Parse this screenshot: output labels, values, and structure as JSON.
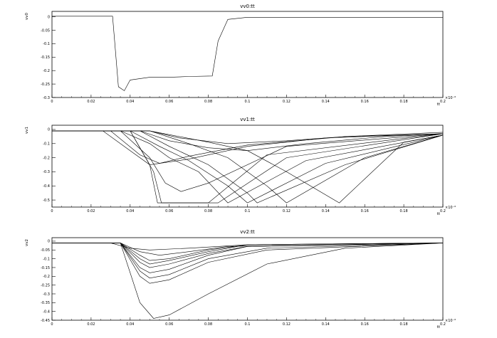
{
  "chart_data": [
    {
      "type": "line",
      "title": "vv0:tt",
      "ylabel": "vv0",
      "xlabel": "tt",
      "x_multiplier": "×10⁻⁶",
      "xlim": [
        0,
        0.2
      ],
      "ylim": [
        -0.3,
        0.02
      ],
      "x_ticks": [
        0,
        0.02,
        0.04,
        0.06,
        0.08,
        0.1,
        0.12,
        0.14,
        0.16,
        0.18,
        0.2
      ],
      "x_tick_labels": [
        "0",
        "0.02",
        "0.04",
        "0.06",
        "0.08",
        "0.1",
        "0.12",
        "0.14",
        "0.16",
        "0.18",
        "0.2"
      ],
      "y_ticks": [
        0,
        -0.05,
        -0.1,
        -0.15,
        -0.2,
        -0.25,
        -0.3
      ],
      "y_tick_labels": [
        "0",
        "-0.05",
        "-0.1",
        "-0.15",
        "-0.2",
        "-0.25",
        "-0.3"
      ],
      "grid": false,
      "series": [
        {
          "x": [
            0,
            0.031,
            0.034,
            0.037,
            0.04,
            0.05,
            0.06,
            0.07,
            0.082,
            0.085,
            0.09,
            0.1,
            0.2
          ],
          "y": [
            0.002,
            0.002,
            -0.26,
            -0.275,
            -0.235,
            -0.225,
            -0.225,
            -0.222,
            -0.22,
            -0.09,
            -0.01,
            -0.002,
            -0.002
          ]
        }
      ]
    },
    {
      "type": "line",
      "title": "vv1:tt",
      "ylabel": "vv1",
      "xlabel": "tt",
      "x_multiplier": "×10⁻⁶",
      "xlim": [
        0,
        0.2
      ],
      "ylim": [
        -0.55,
        0.03
      ],
      "x_ticks": [
        0,
        0.02,
        0.04,
        0.06,
        0.08,
        0.1,
        0.12,
        0.14,
        0.16,
        0.18,
        0.2
      ],
      "x_tick_labels": [
        "0",
        "0.02",
        "0.04",
        "0.06",
        "0.08",
        "0.1",
        "0.12",
        "0.14",
        "0.16",
        "0.18",
        "0.2"
      ],
      "y_ticks": [
        0,
        -0.1,
        -0.2,
        -0.3,
        -0.4,
        -0.5
      ],
      "y_tick_labels": [
        "0",
        "-0.1",
        "-0.2",
        "-0.3",
        "-0.4",
        "-0.5"
      ],
      "grid": false,
      "series": [
        {
          "x": [
            0,
            0.026,
            0.04,
            0.05,
            0.07,
            0.1,
            0.14,
            0.2
          ],
          "y": [
            -0.01,
            -0.01,
            -0.15,
            -0.25,
            -0.21,
            -0.12,
            -0.06,
            -0.03
          ]
        },
        {
          "x": [
            0,
            0.03,
            0.045,
            0.055,
            0.07,
            0.1,
            0.15,
            0.2
          ],
          "y": [
            -0.01,
            -0.01,
            -0.18,
            -0.24,
            -0.19,
            -0.11,
            -0.05,
            -0.03
          ]
        },
        {
          "x": [
            0,
            0.035,
            0.05,
            0.058,
            0.066,
            0.08,
            0.12,
            0.2
          ],
          "y": [
            -0.01,
            -0.01,
            -0.2,
            -0.38,
            -0.44,
            -0.38,
            -0.12,
            -0.03
          ]
        },
        {
          "x": [
            0,
            0.04,
            0.05,
            0.054,
            0.06,
            0.08,
            0.11,
            0.2
          ],
          "y": [
            -0.01,
            -0.01,
            -0.25,
            -0.52,
            -0.52,
            -0.52,
            -0.18,
            -0.03
          ]
        },
        {
          "x": [
            0,
            0.04,
            0.052,
            0.056,
            0.065,
            0.085,
            0.12,
            0.2
          ],
          "y": [
            -0.01,
            -0.01,
            -0.3,
            -0.52,
            -0.52,
            -0.52,
            -0.2,
            -0.03
          ]
        },
        {
          "x": [
            0,
            0.035,
            0.05,
            0.06,
            0.075,
            0.09,
            0.13,
            0.2
          ],
          "y": [
            -0.01,
            -0.01,
            -0.1,
            -0.2,
            -0.3,
            -0.52,
            -0.22,
            -0.04
          ]
        },
        {
          "x": [
            0,
            0.04,
            0.055,
            0.07,
            0.09,
            0.1,
            0.14,
            0.2
          ],
          "y": [
            -0.01,
            -0.01,
            -0.12,
            -0.22,
            -0.4,
            -0.52,
            -0.24,
            -0.04
          ]
        },
        {
          "x": [
            0,
            0.045,
            0.06,
            0.08,
            0.1,
            0.105,
            0.15,
            0.2
          ],
          "y": [
            -0.01,
            -0.01,
            -0.12,
            -0.25,
            -0.45,
            -0.52,
            -0.25,
            -0.04
          ]
        },
        {
          "x": [
            0,
            0.05,
            0.07,
            0.09,
            0.11,
            0.12,
            0.16,
            0.2
          ],
          "y": [
            -0.01,
            -0.01,
            -0.1,
            -0.2,
            -0.4,
            -0.52,
            -0.2,
            -0.04
          ]
        },
        {
          "x": [
            0,
            0.05,
            0.08,
            0.1,
            0.12,
            0.147,
            0.18,
            0.2
          ],
          "y": [
            -0.01,
            -0.01,
            -0.09,
            -0.15,
            -0.3,
            -0.52,
            -0.09,
            -0.04
          ]
        },
        {
          "x": [
            0,
            0.045,
            0.06,
            0.08,
            0.1,
            0.13,
            0.17,
            0.2
          ],
          "y": [
            -0.01,
            -0.01,
            -0.08,
            -0.13,
            -0.15,
            -0.1,
            -0.05,
            -0.03
          ]
        },
        {
          "x": [
            0,
            0.05,
            0.065,
            0.09,
            0.12,
            0.15,
            0.2
          ],
          "y": [
            -0.01,
            -0.01,
            -0.06,
            -0.1,
            -0.08,
            -0.05,
            -0.02
          ]
        }
      ]
    },
    {
      "type": "line",
      "title": "vv2:tt",
      "ylabel": "vv2",
      "xlabel": "tt",
      "x_multiplier": "×10⁻⁶",
      "xlim": [
        0,
        0.2
      ],
      "ylim": [
        -0.45,
        0.02
      ],
      "x_ticks": [
        0,
        0.02,
        0.04,
        0.06,
        0.08,
        0.1,
        0.12,
        0.14,
        0.16,
        0.18,
        0.2
      ],
      "x_tick_labels": [
        "0",
        "0.02",
        "0.04",
        "0.06",
        "0.08",
        "0.1",
        "0.12",
        "0.14",
        "0.16",
        "0.18",
        "0.2"
      ],
      "y_ticks": [
        0,
        -0.05,
        -0.1,
        -0.15,
        -0.2,
        -0.25,
        -0.3,
        -0.35,
        -0.4,
        -0.45
      ],
      "y_tick_labels": [
        "0",
        "-0.05",
        "-0.1",
        "-0.15",
        "-0.2",
        "-0.25",
        "-0.3",
        "-0.35",
        "-0.4",
        "-0.45"
      ],
      "grid": false,
      "series": [
        {
          "x": [
            0,
            0.035,
            0.045,
            0.052,
            0.06,
            0.08,
            0.11,
            0.15,
            0.2
          ],
          "y": [
            -0.01,
            -0.01,
            -0.35,
            -0.44,
            -0.42,
            -0.3,
            -0.13,
            -0.04,
            -0.01
          ]
        },
        {
          "x": [
            0,
            0.035,
            0.045,
            0.05,
            0.06,
            0.08,
            0.11,
            0.2
          ],
          "y": [
            -0.01,
            -0.01,
            -0.2,
            -0.24,
            -0.22,
            -0.12,
            -0.05,
            -0.01
          ]
        },
        {
          "x": [
            0,
            0.035,
            0.045,
            0.05,
            0.06,
            0.08,
            0.11,
            0.2
          ],
          "y": [
            -0.01,
            -0.01,
            -0.17,
            -0.21,
            -0.19,
            -0.1,
            -0.04,
            -0.01
          ]
        },
        {
          "x": [
            0,
            0.035,
            0.045,
            0.05,
            0.06,
            0.08,
            0.1,
            0.2
          ],
          "y": [
            -0.01,
            -0.01,
            -0.15,
            -0.18,
            -0.16,
            -0.08,
            -0.03,
            -0.01
          ]
        },
        {
          "x": [
            0,
            0.035,
            0.045,
            0.05,
            0.06,
            0.08,
            0.1,
            0.2
          ],
          "y": [
            -0.01,
            -0.01,
            -0.12,
            -0.15,
            -0.13,
            -0.07,
            -0.03,
            -0.01
          ]
        },
        {
          "x": [
            0,
            0.035,
            0.045,
            0.05,
            0.06,
            0.08,
            0.1,
            0.2
          ],
          "y": [
            -0.01,
            -0.01,
            -0.1,
            -0.13,
            -0.11,
            -0.06,
            -0.02,
            -0.01
          ]
        },
        {
          "x": [
            0,
            0.035,
            0.045,
            0.05,
            0.06,
            0.08,
            0.1,
            0.2
          ],
          "y": [
            -0.01,
            -0.01,
            -0.08,
            -0.11,
            -0.1,
            -0.05,
            -0.02,
            -0.01
          ]
        },
        {
          "x": [
            0,
            0.035,
            0.045,
            0.055,
            0.07,
            0.09,
            0.2
          ],
          "y": [
            -0.01,
            -0.01,
            -0.06,
            -0.08,
            -0.06,
            -0.03,
            -0.01
          ]
        },
        {
          "x": [
            0,
            0.03,
            0.04,
            0.05,
            0.07,
            0.1,
            0.2
          ],
          "y": [
            -0.01,
            -0.01,
            -0.04,
            -0.05,
            -0.04,
            -0.02,
            -0.01
          ]
        }
      ]
    }
  ]
}
